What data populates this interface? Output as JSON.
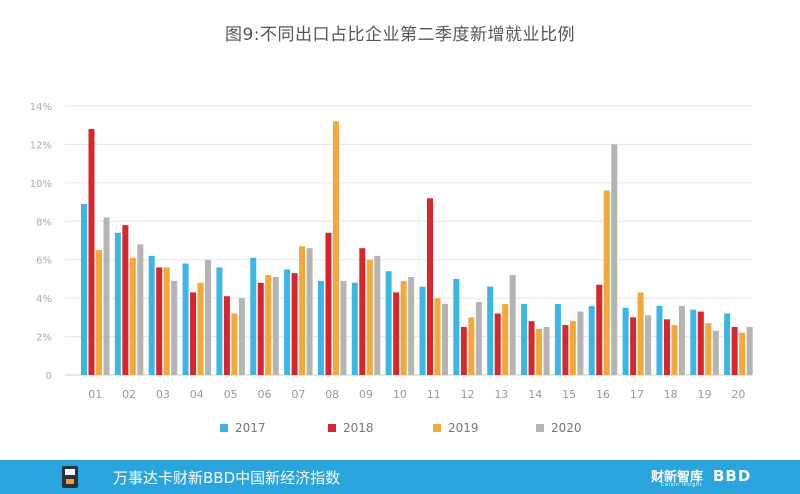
{
  "chart_data": {
    "type": "bar",
    "title": "图9:不同出口占比企业第二季度新增就业比例",
    "categories": [
      "01",
      "02",
      "03",
      "04",
      "05",
      "06",
      "07",
      "08",
      "09",
      "10",
      "11",
      "12",
      "13",
      "14",
      "15",
      "16",
      "17",
      "18",
      "19",
      "20"
    ],
    "series": [
      {
        "name": "2017",
        "color": "#3ab6e7",
        "values": [
          8.9,
          7.4,
          6.2,
          5.8,
          5.6,
          6.1,
          5.5,
          4.9,
          4.8,
          5.4,
          4.6,
          5.0,
          4.6,
          3.7,
          3.7,
          3.6,
          3.5,
          3.6,
          3.4,
          3.2
        ]
      },
      {
        "name": "2018",
        "color": "#d9262c",
        "values": [
          12.8,
          7.8,
          5.6,
          4.3,
          4.1,
          4.8,
          5.3,
          7.4,
          6.6,
          4.3,
          9.2,
          2.5,
          3.2,
          2.8,
          2.6,
          4.7,
          3.0,
          2.9,
          3.3,
          2.5
        ]
      },
      {
        "name": "2019",
        "color": "#f3a93a",
        "values": [
          6.5,
          6.1,
          5.6,
          4.8,
          3.2,
          5.2,
          6.7,
          13.2,
          6.0,
          4.9,
          4.0,
          3.0,
          3.7,
          2.4,
          2.8,
          9.6,
          4.3,
          2.6,
          2.7,
          2.2
        ]
      },
      {
        "name": "2020",
        "color": "#b4b4b4",
        "values": [
          8.2,
          6.8,
          4.9,
          6.0,
          4.0,
          5.1,
          6.6,
          4.9,
          6.2,
          5.1,
          3.7,
          3.8,
          5.2,
          2.5,
          3.3,
          12.0,
          3.1,
          3.6,
          2.3,
          2.5
        ]
      }
    ],
    "yticks": [
      "0",
      "2%",
      "4%",
      "6%",
      "8%",
      "10%",
      "12%",
      "14%"
    ],
    "ylim": [
      0,
      14
    ],
    "xlabel": "",
    "ylabel": "",
    "grid": true,
    "legend": "bottom-center"
  },
  "footer": {
    "text": "万事达卡财新BBD中国新经济指数",
    "brand1": "财新智库",
    "brand1_sub": "Caixin Insight",
    "brand2": "BBD",
    "background": "#2aa4dc"
  }
}
